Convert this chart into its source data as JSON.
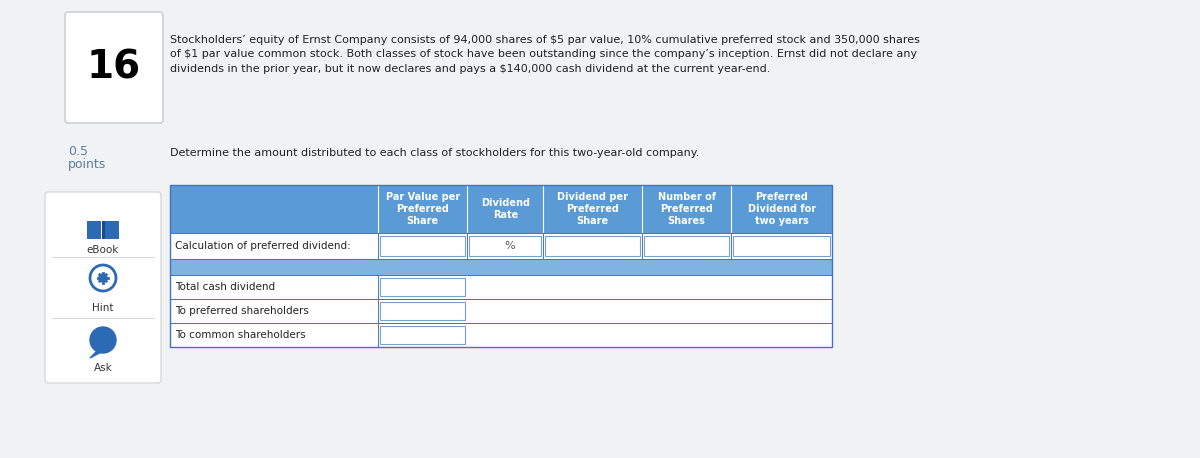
{
  "bg_color": "#eaeaea",
  "page_bg": "#f5f5f5",
  "number": "16",
  "points_line1": "0.5",
  "points_line2": "points",
  "paragraph": "Stockholders’ equity of Ernst Company consists of 94,000 shares of $5 par value, 10% cumulative preferred stock and 350,000 shares\nof $1 par value common stock. Both classes of stock have been outstanding since the company’s inception. Ernst did not declare any\ndividends in the prior year, but it now declares and pays a $140,000 cash dividend at the current year-end.",
  "subheading": "Determine the amount distributed to each class of stockholders for this two-year-old company.",
  "table_header_bg": "#5b9bd5",
  "table_header_text": "#ffffff",
  "table_border_color": "#4472c4",
  "table_spacer_bg": "#7fb3e0",
  "col_headers": [
    "",
    "Par Value per\nPreferred\nShare",
    "Dividend\nRate",
    "Dividend per\nPreferred\nShare",
    "Number of\nPreferred\nShares",
    "Preferred\nDividend for\ntwo years"
  ],
  "row1_label": "Calculation of preferred dividend:",
  "bottom_rows": [
    "Total cash dividend",
    "To preferred shareholders",
    "To common shareholders"
  ],
  "sidebar_bg": "#ffffff",
  "sidebar_border": "#d0d0d0",
  "number_box_bg": "#ffffff",
  "number_box_border": "#c8c8c8",
  "input_box_border": "#7a9fc4",
  "text_color": "#222222",
  "points_color": "#5b7fa3"
}
